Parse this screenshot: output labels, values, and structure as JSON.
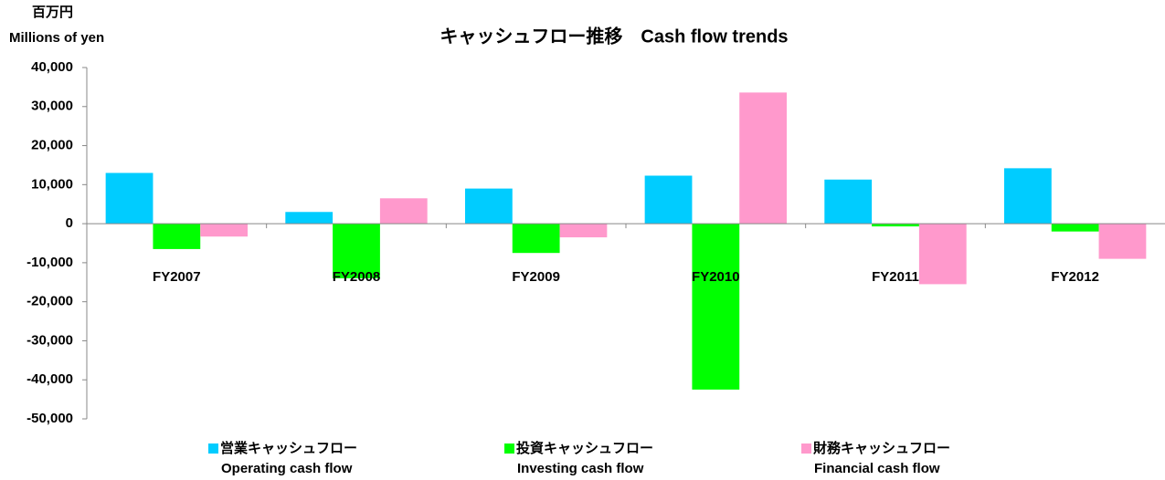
{
  "chart_data": {
    "type": "bar",
    "title": "キャッシュフロー推移　Cash flow trends",
    "y_label": "百万円",
    "y_label_en": "Millions of yen",
    "categories": [
      "FY2007",
      "FY2008",
      "FY2009",
      "FY2010",
      "FY2011",
      "FY2012"
    ],
    "series": [
      {
        "name": "営業キャッシュフロー",
        "name_en": "Operating cash flow",
        "color": "#00ccff",
        "values": [
          13000,
          3000,
          9000,
          12300,
          11300,
          14200
        ]
      },
      {
        "name": "投資キャッシュフロー",
        "name_en": "Investing cash flow",
        "color": "#00ff00",
        "values": [
          -6500,
          -14000,
          -7500,
          -42500,
          -700,
          -2000
        ]
      },
      {
        "name": "財務キャッシュフロー",
        "name_en": "Financial cash flow",
        "color": "#ff99cc",
        "values": [
          -3300,
          6500,
          -3500,
          33600,
          -15500,
          -9000
        ]
      }
    ],
    "ylim": [
      -50000,
      40000
    ],
    "yticks": [
      {
        "value": -50000,
        "label": "-50,000"
      },
      {
        "value": -40000,
        "label": "-40,000"
      },
      {
        "value": -30000,
        "label": "-30,000"
      },
      {
        "value": -20000,
        "label": "-20,000"
      },
      {
        "value": -10000,
        "label": "-10,000"
      },
      0,
      {
        "value": 10000,
        "label": "10,000"
      },
      {
        "value": 20000,
        "label": "20,000"
      },
      {
        "value": 30000,
        "label": "30,000"
      },
      {
        "value": 40000,
        "label": "40,000"
      }
    ],
    "grid": false,
    "legend": "bottom"
  }
}
